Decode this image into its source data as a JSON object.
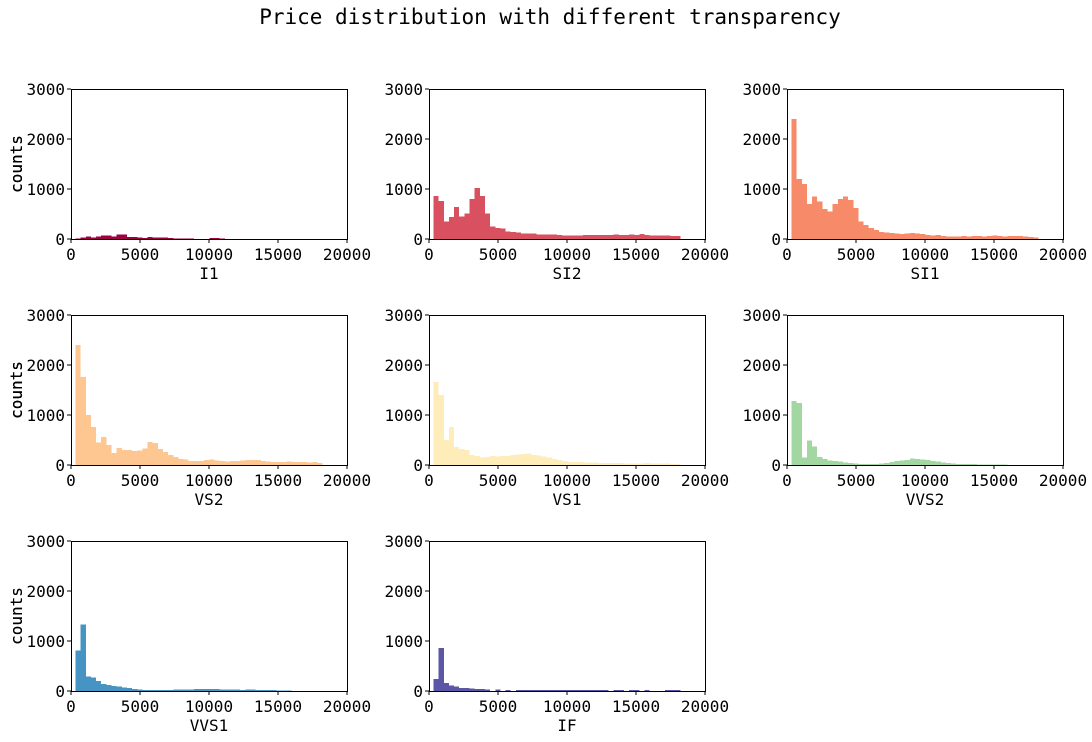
{
  "title": "Price distribution with different transparency",
  "chart_data": [
    {
      "type": "bar",
      "variant": "histogram",
      "title": "",
      "xlabel": "I1",
      "ylabel": "counts",
      "color": "#9e0142",
      "opacity": 1.0,
      "xlim": [
        0,
        20000
      ],
      "ylim": [
        0,
        3000
      ],
      "xticks": [
        "0",
        "5000",
        "10000",
        "15000",
        "20000"
      ],
      "yticks": [
        "0",
        "1000",
        "2000",
        "3000"
      ],
      "bin_width": 373,
      "bin_starts": [
        326,
        699,
        1072,
        1445,
        1818,
        2191,
        2564,
        2937,
        3310,
        3683,
        4056,
        4429,
        4802,
        5175,
        5548,
        5921,
        6294,
        6667,
        7040,
        7413,
        7786,
        8159,
        8532,
        8905,
        9278,
        9651,
        10024,
        10397,
        10770,
        11143,
        11516,
        11889,
        12262,
        12635,
        13008,
        13381,
        13754,
        14127,
        14500,
        14873,
        15246,
        15619,
        15992,
        16365,
        16738,
        17111,
        17484,
        17857,
        18230
      ],
      "values": [
        10,
        30,
        55,
        30,
        50,
        75,
        70,
        55,
        90,
        95,
        45,
        40,
        30,
        25,
        40,
        35,
        30,
        30,
        25,
        15,
        10,
        8,
        6,
        0,
        0,
        0,
        20,
        25,
        10,
        0,
        0,
        0,
        0,
        0,
        0,
        0,
        0,
        0,
        0,
        0,
        0,
        0,
        0,
        0,
        0,
        0,
        0,
        0,
        0
      ]
    },
    {
      "type": "bar",
      "variant": "histogram",
      "title": "",
      "xlabel": "SI2",
      "ylabel": "counts",
      "color": "#d53e4f",
      "opacity": 0.9,
      "xlim": [
        0,
        20000
      ],
      "ylim": [
        0,
        3000
      ],
      "xticks": [
        "0",
        "5000",
        "10000",
        "15000",
        "20000"
      ],
      "yticks": [
        "0",
        "1000",
        "2000",
        "3000"
      ],
      "bin_width": 373,
      "bin_starts": [
        326,
        699,
        1072,
        1445,
        1818,
        2191,
        2564,
        2937,
        3310,
        3683,
        4056,
        4429,
        4802,
        5175,
        5548,
        5921,
        6294,
        6667,
        7040,
        7413,
        7786,
        8159,
        8532,
        8905,
        9278,
        9651,
        10024,
        10397,
        10770,
        11143,
        11516,
        11889,
        12262,
        12635,
        13008,
        13381,
        13754,
        14127,
        14500,
        14873,
        15246,
        15619,
        15992,
        16365,
        16738,
        17111,
        17484,
        17857,
        18230
      ],
      "values": [
        860,
        760,
        350,
        440,
        640,
        450,
        510,
        800,
        1020,
        860,
        510,
        250,
        220,
        210,
        150,
        140,
        130,
        110,
        110,
        110,
        90,
        90,
        90,
        90,
        80,
        70,
        70,
        70,
        70,
        80,
        80,
        80,
        80,
        80,
        80,
        90,
        80,
        80,
        90,
        80,
        100,
        80,
        70,
        70,
        70,
        70,
        60,
        60,
        0
      ]
    },
    {
      "type": "bar",
      "variant": "histogram",
      "title": "",
      "xlabel": "SI1",
      "ylabel": "counts",
      "color": "#f46d43",
      "opacity": 0.8,
      "xlim": [
        0,
        20000
      ],
      "ylim": [
        0,
        3000
      ],
      "xticks": [
        "0",
        "5000",
        "10000",
        "15000",
        "20000"
      ],
      "yticks": [
        "0",
        "1000",
        "2000",
        "3000"
      ],
      "bin_width": 373,
      "bin_starts": [
        326,
        699,
        1072,
        1445,
        1818,
        2191,
        2564,
        2937,
        3310,
        3683,
        4056,
        4429,
        4802,
        5175,
        5548,
        5921,
        6294,
        6667,
        7040,
        7413,
        7786,
        8159,
        8532,
        8905,
        9278,
        9651,
        10024,
        10397,
        10770,
        11143,
        11516,
        11889,
        12262,
        12635,
        13008,
        13381,
        13754,
        14127,
        14500,
        14873,
        15246,
        15619,
        15992,
        16365,
        16738,
        17111,
        17484,
        17857,
        18230
      ],
      "values": [
        2400,
        1200,
        1100,
        700,
        850,
        750,
        600,
        550,
        700,
        800,
        850,
        780,
        620,
        350,
        280,
        220,
        180,
        140,
        130,
        120,
        110,
        100,
        110,
        120,
        110,
        100,
        80,
        70,
        80,
        60,
        50,
        50,
        50,
        60,
        50,
        60,
        60,
        50,
        60,
        70,
        60,
        50,
        60,
        60,
        60,
        50,
        40,
        30,
        0
      ]
    },
    {
      "type": "bar",
      "variant": "histogram",
      "title": "",
      "xlabel": "VS2",
      "ylabel": "counts",
      "color": "#fdae61",
      "opacity": 0.7,
      "xlim": [
        0,
        20000
      ],
      "ylim": [
        0,
        3000
      ],
      "xticks": [
        "0",
        "5000",
        "10000",
        "15000",
        "20000"
      ],
      "yticks": [
        "0",
        "1000",
        "2000",
        "3000"
      ],
      "bin_width": 373,
      "bin_starts": [
        326,
        699,
        1072,
        1445,
        1818,
        2191,
        2564,
        2937,
        3310,
        3683,
        4056,
        4429,
        4802,
        5175,
        5548,
        5921,
        6294,
        6667,
        7040,
        7413,
        7786,
        8159,
        8532,
        8905,
        9278,
        9651,
        10024,
        10397,
        10770,
        11143,
        11516,
        11889,
        12262,
        12635,
        13008,
        13381,
        13754,
        14127,
        14500,
        14873,
        15246,
        15619,
        15992,
        16365,
        16738,
        17111,
        17484,
        17857,
        18230
      ],
      "values": [
        2400,
        1760,
        1000,
        760,
        450,
        560,
        400,
        240,
        340,
        300,
        300,
        280,
        290,
        330,
        460,
        440,
        320,
        260,
        200,
        160,
        120,
        110,
        80,
        80,
        80,
        100,
        110,
        90,
        80,
        70,
        80,
        80,
        90,
        100,
        100,
        100,
        80,
        70,
        60,
        60,
        60,
        70,
        60,
        60,
        60,
        50,
        60,
        40,
        0
      ]
    },
    {
      "type": "bar",
      "variant": "histogram",
      "title": "",
      "xlabel": "VS1",
      "ylabel": "counts",
      "color": "#fee08b",
      "opacity": 0.6,
      "xlim": [
        0,
        20000
      ],
      "ylim": [
        0,
        3000
      ],
      "xticks": [
        "0",
        "5000",
        "10000",
        "15000",
        "20000"
      ],
      "yticks": [
        "0",
        "1000",
        "2000",
        "3000"
      ],
      "bin_width": 373,
      "bin_starts": [
        326,
        699,
        1072,
        1445,
        1818,
        2191,
        2564,
        2937,
        3310,
        3683,
        4056,
        4429,
        4802,
        5175,
        5548,
        5921,
        6294,
        6667,
        7040,
        7413,
        7786,
        8159,
        8532,
        8905,
        9278,
        9651,
        10024,
        10397,
        10770,
        11143,
        11516,
        11889,
        12262,
        12635,
        13008,
        13381,
        13754,
        14127,
        14500,
        14873,
        15246,
        15619,
        15992,
        16365,
        16738,
        17111,
        17484,
        17857,
        18230
      ],
      "values": [
        1660,
        1400,
        500,
        760,
        360,
        320,
        300,
        200,
        180,
        150,
        160,
        180,
        170,
        180,
        180,
        200,
        210,
        220,
        230,
        200,
        190,
        170,
        150,
        120,
        100,
        80,
        60,
        60,
        60,
        50,
        50,
        50,
        40,
        40,
        40,
        40,
        40,
        30,
        30,
        30,
        30,
        40,
        30,
        30,
        30,
        30,
        20,
        20,
        0
      ]
    },
    {
      "type": "bar",
      "variant": "histogram",
      "title": "",
      "xlabel": "VVS2",
      "ylabel": "counts",
      "color": "#66bd63",
      "opacity": 0.6,
      "xlim": [
        0,
        20000
      ],
      "ylim": [
        0,
        3000
      ],
      "xticks": [
        "0",
        "5000",
        "10000",
        "15000",
        "20000"
      ],
      "yticks": [
        "0",
        "1000",
        "2000",
        "3000"
      ],
      "bin_width": 373,
      "bin_starts": [
        326,
        699,
        1072,
        1445,
        1818,
        2191,
        2564,
        2937,
        3310,
        3683,
        4056,
        4429,
        4802,
        5175,
        5548,
        5921,
        6294,
        6667,
        7040,
        7413,
        7786,
        8159,
        8532,
        8905,
        9278,
        9651,
        10024,
        10397,
        10770,
        11143,
        11516,
        11889,
        12262,
        12635,
        13008,
        13381,
        13754,
        14127,
        14500,
        14873,
        15246,
        15619,
        15992,
        16365,
        16738,
        17111,
        17484,
        17857,
        18230
      ],
      "values": [
        1280,
        1240,
        150,
        490,
        370,
        160,
        120,
        90,
        80,
        70,
        50,
        40,
        30,
        20,
        20,
        20,
        20,
        30,
        40,
        60,
        80,
        90,
        100,
        130,
        120,
        110,
        100,
        80,
        70,
        50,
        40,
        30,
        25,
        20,
        20,
        20,
        15,
        15,
        10,
        10,
        10,
        10,
        5,
        5,
        0,
        0,
        0,
        0,
        0
      ]
    },
    {
      "type": "bar",
      "variant": "histogram",
      "title": "",
      "xlabel": "VVS1",
      "ylabel": "counts",
      "color": "#3288bd",
      "opacity": 0.9,
      "xlim": [
        0,
        20000
      ],
      "ylim": [
        0,
        3000
      ],
      "xticks": [
        "0",
        "5000",
        "10000",
        "15000",
        "20000"
      ],
      "yticks": [
        "0",
        "1000",
        "2000",
        "3000"
      ],
      "bin_width": 373,
      "bin_starts": [
        326,
        699,
        1072,
        1445,
        1818,
        2191,
        2564,
        2937,
        3310,
        3683,
        4056,
        4429,
        4802,
        5175,
        5548,
        5921,
        6294,
        6667,
        7040,
        7413,
        7786,
        8159,
        8532,
        8905,
        9278,
        9651,
        10024,
        10397,
        10770,
        11143,
        11516,
        11889,
        12262,
        12635,
        13008,
        13381,
        13754,
        14127,
        14500,
        14873,
        15246,
        15619,
        15992,
        16365,
        16738,
        17111,
        17484,
        17857,
        18230
      ],
      "values": [
        810,
        1330,
        290,
        270,
        200,
        140,
        120,
        100,
        90,
        70,
        60,
        40,
        30,
        20,
        20,
        20,
        20,
        20,
        25,
        30,
        30,
        30,
        30,
        40,
        40,
        40,
        40,
        40,
        30,
        30,
        30,
        30,
        20,
        30,
        30,
        20,
        20,
        20,
        20,
        10,
        10,
        10,
        0,
        0,
        0,
        0,
        0,
        0,
        0
      ]
    },
    {
      "type": "bar",
      "variant": "histogram",
      "title": "",
      "xlabel": "IF",
      "ylabel": "counts",
      "color": "#3f3896",
      "opacity": 0.85,
      "xlim": [
        0,
        20000
      ],
      "ylim": [
        0,
        3000
      ],
      "xticks": [
        "0",
        "5000",
        "10000",
        "15000",
        "20000"
      ],
      "yticks": [
        "0",
        "1000",
        "2000",
        "3000"
      ],
      "bin_width": 373,
      "bin_starts": [
        326,
        699,
        1072,
        1445,
        1818,
        2191,
        2564,
        2937,
        3310,
        3683,
        4056,
        4429,
        4802,
        5175,
        5548,
        5921,
        6294,
        6667,
        7040,
        7413,
        7786,
        8159,
        8532,
        8905,
        9278,
        9651,
        10024,
        10397,
        10770,
        11143,
        11516,
        11889,
        12262,
        12635,
        13008,
        13381,
        13754,
        14127,
        14500,
        14873,
        15246,
        15619,
        15992,
        16365,
        16738,
        17111,
        17484,
        17857,
        18230
      ],
      "values": [
        240,
        860,
        160,
        110,
        90,
        60,
        60,
        50,
        40,
        40,
        30,
        0,
        30,
        0,
        20,
        0,
        20,
        20,
        20,
        20,
        20,
        20,
        20,
        20,
        20,
        20,
        20,
        20,
        20,
        20,
        20,
        20,
        20,
        20,
        0,
        20,
        20,
        0,
        20,
        20,
        0,
        20,
        0,
        0,
        0,
        20,
        20,
        20,
        0
      ]
    }
  ]
}
